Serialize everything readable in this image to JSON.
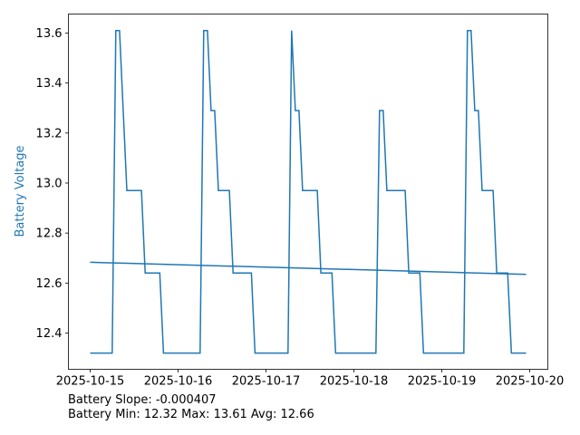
{
  "chart_data": {
    "type": "line",
    "title": "",
    "xlabel": "",
    "ylabel": "Battery Voltage",
    "ylabel_color": "#1f77b4",
    "line_color": "#1f77b4",
    "grid": false,
    "x_start": "2025-10-15T00:00",
    "xlim": [
      "2025-10-14T18:03",
      "2025-10-20T04:57"
    ],
    "ylim": [
      12.255,
      13.676
    ],
    "xticks": [
      "2025-10-15",
      "2025-10-16",
      "2025-10-17",
      "2025-10-18",
      "2025-10-19",
      "2025-10-20"
    ],
    "yticks": [
      "12.4",
      "12.6",
      "12.8",
      "13.0",
      "13.2",
      "13.4",
      "13.6"
    ],
    "series": [
      {
        "kind": "voltage",
        "x": [
          "2025-10-15T00:00",
          "2025-10-15T06:00",
          "2025-10-15T07:00",
          "2025-10-15T08:00",
          "2025-10-15T10:00",
          "2025-10-15T14:00",
          "2025-10-15T15:00",
          "2025-10-15T19:00",
          "2025-10-15T20:00",
          "2025-10-16T06:00",
          "2025-10-16T07:00",
          "2025-10-16T08:00",
          "2025-10-16T09:00",
          "2025-10-16T10:00",
          "2025-10-16T11:00",
          "2025-10-16T14:00",
          "2025-10-16T15:00",
          "2025-10-16T20:00",
          "2025-10-16T21:00",
          "2025-10-17T06:00",
          "2025-10-17T07:00",
          "2025-10-17T08:00",
          "2025-10-17T09:00",
          "2025-10-17T10:00",
          "2025-10-17T14:00",
          "2025-10-17T15:00",
          "2025-10-17T18:00",
          "2025-10-17T19:00",
          "2025-10-18T06:00",
          "2025-10-18T07:00",
          "2025-10-18T08:00",
          "2025-10-18T09:00",
          "2025-10-18T14:00",
          "2025-10-18T15:00",
          "2025-10-18T18:00",
          "2025-10-18T19:00",
          "2025-10-19T06:00",
          "2025-10-19T07:00",
          "2025-10-19T08:00",
          "2025-10-19T09:00",
          "2025-10-19T10:00",
          "2025-10-19T11:00",
          "2025-10-19T14:00",
          "2025-10-19T15:00",
          "2025-10-19T18:00",
          "2025-10-19T19:00",
          "2025-10-19T23:00"
        ],
        "y": [
          12.32,
          12.32,
          13.61,
          13.61,
          12.97,
          12.97,
          12.64,
          12.64,
          12.32,
          12.32,
          13.61,
          13.61,
          13.29,
          13.29,
          12.97,
          12.97,
          12.64,
          12.64,
          12.32,
          12.32,
          13.61,
          13.29,
          13.29,
          12.97,
          12.97,
          12.64,
          12.64,
          12.32,
          12.32,
          13.29,
          13.29,
          12.97,
          12.97,
          12.64,
          12.64,
          12.32,
          12.32,
          13.61,
          13.61,
          13.29,
          13.29,
          12.97,
          12.97,
          12.64,
          12.64,
          12.32,
          12.32
        ]
      },
      {
        "kind": "trend",
        "x": [
          "2025-10-15T00:00",
          "2025-10-19T23:00"
        ],
        "y": [
          12.683,
          12.635
        ]
      }
    ]
  },
  "stats": {
    "slope_line": "Battery Slope: -0.000407",
    "summary_line": "Battery Min: 12.32 Max: 13.61 Avg: 12.66"
  }
}
